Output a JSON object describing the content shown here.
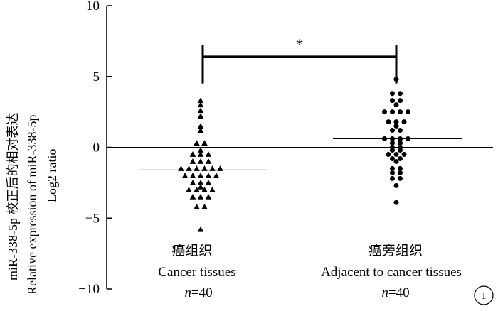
{
  "chart_data": {
    "type": "scatter",
    "ylim": [
      -10,
      10
    ],
    "yticks": [
      10,
      5,
      0,
      -5,
      -10
    ],
    "ylabel": {
      "line1": "miR-338-5p 校正后的相对表达",
      "line2": "Relative expression of miR-338-5p",
      "line3": "Log2 ratio"
    },
    "significance_marker": "*",
    "panel_label": "1",
    "groups": [
      {
        "label_cn": "癌组织",
        "label_en": "Cancer tissues",
        "n_label": "=40",
        "n_prefix": "n",
        "marker": "triangle",
        "mean": -1.6,
        "values": [
          3.3,
          3.0,
          2.6,
          2.2,
          1.5,
          1.2,
          0.3,
          0.3,
          -0.2,
          -0.5,
          -0.5,
          -0.5,
          -1.0,
          -1.0,
          -1.0,
          -1.5,
          -1.5,
          -1.5,
          -1.5,
          -1.5,
          -1.5,
          -2.0,
          -2.0,
          -2.0,
          -2.0,
          -2.0,
          -2.5,
          -2.5,
          -2.5,
          -2.8,
          -3.0,
          -3.0,
          -3.0,
          -3.0,
          -3.5,
          -3.5,
          -3.5,
          -4.2,
          -4.2,
          -5.8
        ]
      },
      {
        "label_cn": "癌旁组织",
        "label_en": "Adjacent to cancer tissues",
        "n_label": "=40",
        "n_prefix": "n",
        "marker": "circle",
        "mean": 0.6,
        "values": [
          4.8,
          3.8,
          3.8,
          3.3,
          3.3,
          3.0,
          2.5,
          2.5,
          2.5,
          2.5,
          1.8,
          1.8,
          1.8,
          1.5,
          1.2,
          1.2,
          0.6,
          0.6,
          0.6,
          0.6,
          0.3,
          0.3,
          0.0,
          0.0,
          -0.2,
          -0.2,
          -0.5,
          -0.5,
          -0.5,
          -0.8,
          -0.8,
          -1.0,
          -1.5,
          -1.5,
          -1.8,
          -1.8,
          -2.2,
          -2.2,
          -2.7,
          -3.9
        ]
      }
    ]
  }
}
